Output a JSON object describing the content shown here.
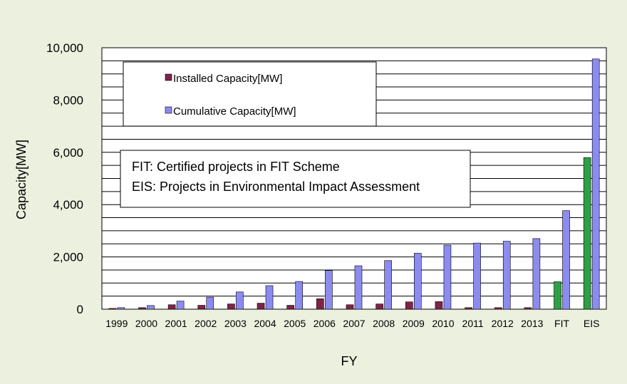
{
  "chart_data": {
    "type": "bar",
    "title": "",
    "xlabel": "FY",
    "ylabel": "Capacity[MW]",
    "ylim": [
      0,
      10000
    ],
    "y_tick_step": 2000,
    "y_minor_step": 500,
    "y_tick_labels": [
      "0",
      "2,000",
      "4,000",
      "6,000",
      "8,000",
      "10,000"
    ],
    "grid": true,
    "legend_position": "top-left",
    "categories": [
      "1999",
      "2000",
      "2001",
      "2002",
      "2003",
      "2004",
      "2005",
      "2006",
      "2007",
      "2008",
      "2009",
      "2010",
      "2011",
      "2012",
      "2013",
      "FIT",
      "EIS"
    ],
    "series": [
      {
        "name": "Installed Capacity[MW]",
        "color": "#7f2349",
        "highlight_color": "#2f9f45",
        "highlight_categories": [
          "FIT",
          "EIS"
        ],
        "values": [
          30,
          60,
          170,
          150,
          200,
          230,
          150,
          400,
          170,
          200,
          280,
          290,
          60,
          60,
          60,
          1050,
          5800
        ]
      },
      {
        "name": "Cumulative Capacity[MW]",
        "color": "#8b8bf0",
        "values": [
          60,
          140,
          310,
          460,
          660,
          900,
          1060,
          1480,
          1660,
          1860,
          2140,
          2450,
          2530,
          2600,
          2700,
          3770,
          9570
        ]
      }
    ],
    "note": {
      "lines": [
        "FIT: Certified projects  in FIT Scheme",
        "EIS: Projects in Environmental Impact Assessment"
      ]
    }
  }
}
